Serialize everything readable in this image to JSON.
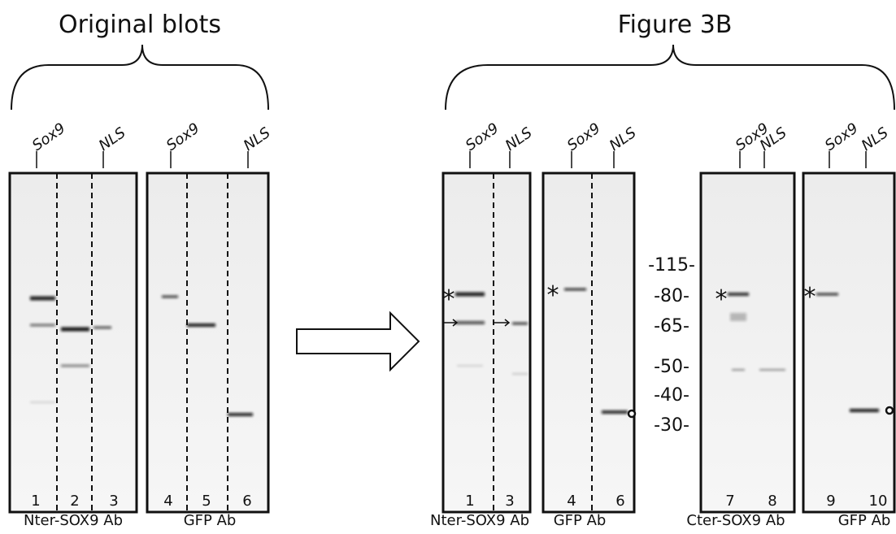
{
  "sections": [
    {
      "title": "Original blots",
      "panels": [
        {
          "top_labels": [
            "Sox9",
            "NLS"
          ],
          "lanes": [
            "1",
            "2",
            "3"
          ],
          "caption": "Nter-SOX9 Ab"
        },
        {
          "top_labels": [
            "Sox9",
            "NLS"
          ],
          "lanes": [
            "4",
            "5",
            "6"
          ],
          "caption": "GFP Ab"
        }
      ]
    },
    {
      "title": "Figure 3B",
      "panels": [
        {
          "top_labels": [
            "Sox9",
            "NLS"
          ],
          "lanes": [
            "1",
            "3"
          ],
          "caption": "Nter-SOX9 Ab"
        },
        {
          "top_labels": [
            "Sox9",
            "NLS"
          ],
          "lanes": [
            "4",
            "6"
          ],
          "caption": "GFP Ab"
        },
        {
          "top_labels": [
            "Sox9",
            "NLS"
          ],
          "lanes": [
            "7",
            "8"
          ],
          "caption": "Cter-SOX9 Ab"
        },
        {
          "top_labels": [
            "Sox9",
            "NLS"
          ],
          "lanes": [
            "9",
            "10"
          ],
          "caption": "GFP Ab"
        }
      ],
      "markers": [
        "-115-",
        "-80-",
        "-65-",
        "-50-",
        "-40-",
        "-30-"
      ],
      "asterisk": "*"
    }
  ]
}
